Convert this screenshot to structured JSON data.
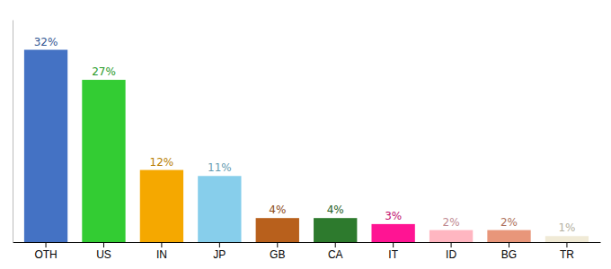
{
  "chart_data": {
    "type": "bar",
    "categories": [
      "OTH",
      "US",
      "IN",
      "JP",
      "GB",
      "CA",
      "IT",
      "ID",
      "BG",
      "TR"
    ],
    "values": [
      32,
      27,
      12,
      11,
      4,
      4,
      3,
      2,
      2,
      1
    ],
    "value_labels": [
      "32%",
      "27%",
      "12%",
      "11%",
      "4%",
      "4%",
      "3%",
      "2%",
      "2%",
      "1%"
    ],
    "colors": [
      "#4472c4",
      "#33cc33",
      "#f5a800",
      "#87ceeb",
      "#b8601c",
      "#2d7a2d",
      "#ff1493",
      "#ffb6c1",
      "#e8967a",
      "#f0ead6"
    ],
    "ylim": [
      0,
      37
    ],
    "grid": false,
    "data_labels": true,
    "tick_labels": "x"
  }
}
